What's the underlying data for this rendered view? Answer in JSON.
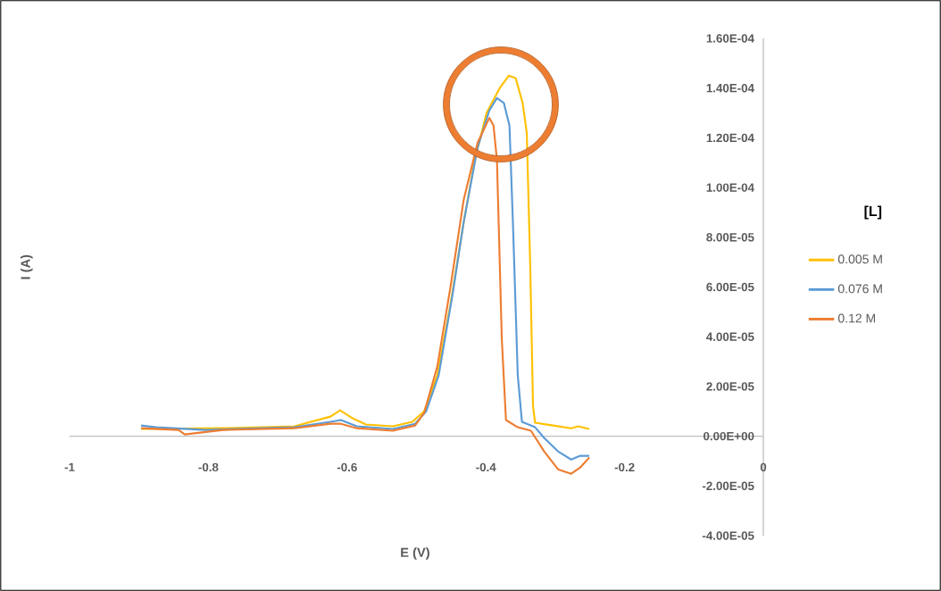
{
  "chart_data": {
    "type": "line",
    "xlabel": "E (V)",
    "ylabel": "I (A)",
    "legend_title": "[L]",
    "legend": "right",
    "grid": false,
    "marker": "none",
    "line_style": "solid",
    "xlim": [
      -1,
      0
    ],
    "xticks": [
      -1,
      -0.8,
      -0.6,
      -0.4,
      -0.2,
      0
    ],
    "ylim": [
      -4e-05,
      0.00016
    ],
    "yticks": [
      {
        "value": -4e-05,
        "label": "-4.00E-05"
      },
      {
        "value": -2e-05,
        "label": "-2.00E-05"
      },
      {
        "value": 0,
        "label": "0.00E+00"
      },
      {
        "value": 2e-05,
        "label": "2.00E-05"
      },
      {
        "value": 4e-05,
        "label": "4.00E-05"
      },
      {
        "value": 6e-05,
        "label": "6.00E-05"
      },
      {
        "value": 8e-05,
        "label": "8.00E-05"
      },
      {
        "value": 0.0001,
        "label": "1.00E-04"
      },
      {
        "value": 0.00012,
        "label": "1.20E-04"
      },
      {
        "value": 0.00014,
        "label": "1.40E-04"
      },
      {
        "value": 0.00016,
        "label": "1.60E-04"
      }
    ],
    "series": [
      {
        "name": "0.005 M",
        "color": "#ffc000",
        "x": [
          -0.897,
          -0.779,
          -0.676,
          -0.624,
          -0.61,
          -0.592,
          -0.573,
          -0.534,
          -0.506,
          -0.489,
          -0.47,
          -0.451,
          -0.432,
          -0.416,
          -0.399,
          -0.38,
          -0.367,
          -0.357,
          -0.347,
          -0.341,
          -0.336,
          -0.332,
          -0.329,
          -0.303,
          -0.277,
          -0.267,
          -0.251
        ],
        "values": [
          2.9e-06,
          3.2e-06,
          4e-06,
          7.9e-06,
          1.04e-05,
          7.2e-06,
          4.7e-06,
          4e-06,
          5.8e-06,
          1e-05,
          2.45e-05,
          5.3e-05,
          8.6e-05,
          0.000111,
          0.00013,
          0.00014,
          0.000145,
          0.000144,
          0.000134,
          0.000122,
          6.8e-05,
          1.2e-05,
          5.4e-06,
          4.3e-06,
          3.2e-06,
          4e-06,
          2.9e-06
        ]
      },
      {
        "name": "0.076 M",
        "color": "#5b9bd5",
        "x": [
          -0.897,
          -0.875,
          -0.804,
          -0.676,
          -0.624,
          -0.609,
          -0.586,
          -0.534,
          -0.502,
          -0.486,
          -0.468,
          -0.448,
          -0.432,
          -0.412,
          -0.395,
          -0.384,
          -0.374,
          -0.366,
          -0.361,
          -0.354,
          -0.348,
          -0.329,
          -0.316,
          -0.296,
          -0.277,
          -0.264,
          -0.251
        ],
        "values": [
          4.3e-06,
          3.6e-06,
          2.5e-06,
          3.6e-06,
          5.8e-06,
          6.5e-06,
          4e-06,
          2.9e-06,
          5e-06,
          1e-05,
          2.45e-05,
          5.7e-05,
          8.6e-05,
          0.000116,
          0.000131,
          0.000136,
          0.000134,
          0.000125,
          8.6e-05,
          2.45e-05,
          5.8e-06,
          3.6e-06,
          -7e-07,
          -6.1e-06,
          -9.4e-06,
          -7.9e-06,
          -7.9e-06
        ]
      },
      {
        "name": "0.12 M",
        "color": "#ed7d31",
        "x": [
          -0.897,
          -0.843,
          -0.834,
          -0.779,
          -0.676,
          -0.624,
          -0.609,
          -0.586,
          -0.534,
          -0.502,
          -0.489,
          -0.47,
          -0.451,
          -0.432,
          -0.412,
          -0.395,
          -0.389,
          -0.384,
          -0.377,
          -0.371,
          -0.354,
          -0.335,
          -0.316,
          -0.296,
          -0.277,
          -0.264,
          -0.251
        ],
        "values": [
          3.2e-06,
          2.5e-06,
          7e-07,
          2.5e-06,
          3.2e-06,
          5e-06,
          5e-06,
          3.2e-06,
          2.2e-06,
          4.3e-06,
          9.4e-06,
          2.8e-05,
          6e-05,
          9.5e-05,
          0.000118,
          0.000128,
          0.000125,
          0.000111,
          3.9e-05,
          6.5e-06,
          3.6e-06,
          2.2e-06,
          -6.1e-06,
          -1.33e-05,
          -1.51e-05,
          -1.26e-05,
          -8.6e-06
        ]
      }
    ]
  }
}
